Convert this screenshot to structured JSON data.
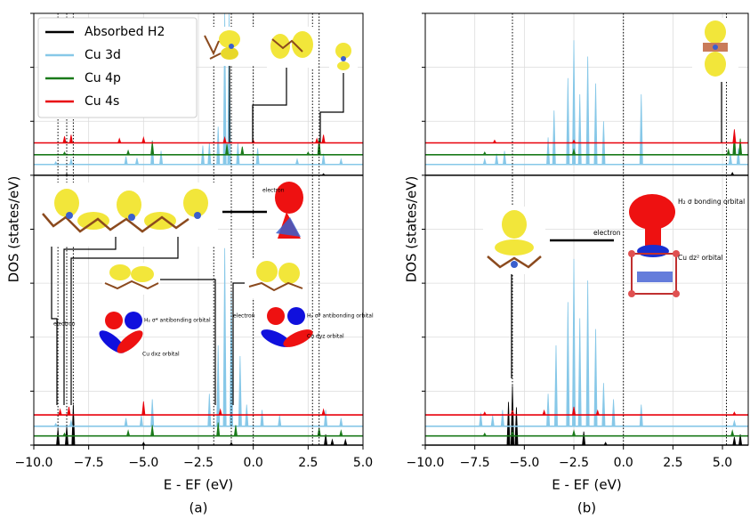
{
  "chart_data": [
    {
      "type": "line",
      "caption": "(a)",
      "xlabel": "E - EF (eV)",
      "ylabel": "DOS (states/eV)",
      "xlim": [
        -10,
        5
      ],
      "xticks": [
        {
          "value": -10,
          "label": "−10.0"
        },
        {
          "value": -7.5,
          "label": "−7.5"
        },
        {
          "value": -5,
          "label": "−5.0"
        },
        {
          "value": -2.5,
          "label": "−2.5"
        },
        {
          "value": 0,
          "label": "0.0"
        },
        2.5,
        {
          "value": 5,
          "label": "5.0"
        }
      ],
      "ylim": [
        0,
        8
      ],
      "yticks": [
        0,
        1,
        2,
        3,
        4,
        5,
        6,
        7,
        8
      ],
      "ytick_labels": false,
      "grid": true,
      "legend": "upper left",
      "vlines": [
        -8.9,
        -8.5,
        -8.2,
        -1.8,
        -1.0,
        0,
        2.7,
        3.0
      ],
      "series": [
        {
          "name": "Absorbed H2",
          "color": "#000000",
          "x": [
            [
              -8.5,
              3.2
            ],
            [
              -8.9,
              -8.5,
              -8.2,
              -5.0,
              -1.0,
              3.3,
              3.6,
              4.2
            ]
          ],
          "values": [
            [
              0.02,
              0.03
            ],
            [
              0.3,
              0.35,
              0.75,
              0.05,
              0.05,
              0.2,
              0.1,
              0.1
            ]
          ]
        },
        {
          "name": "Cu 3d",
          "color": "#87c8e8",
          "x": [
            [
              -9.0,
              -8.3,
              -5.8,
              -5.3,
              -4.6,
              -4.2,
              -2.3,
              -2.0,
              -1.6,
              -1.3,
              -1.1,
              -0.7,
              0.2,
              2.0,
              3.2,
              4.0
            ],
            [
              -9.0,
              -8.3,
              -5.8,
              -5.1,
              -4.6,
              -2.0,
              -1.6,
              -1.3,
              -1.0,
              -0.6,
              -0.3,
              0.4,
              1.2,
              3.3,
              4.0
            ]
          ],
          "values": [
            [
              0.05,
              0.1,
              0.15,
              0.12,
              0.45,
              0.25,
              0.35,
              0.4,
              0.7,
              2.8,
              2.8,
              0.4,
              0.3,
              0.1,
              0.2,
              0.1
            ],
            [
              0.05,
              0.1,
              0.15,
              0.2,
              0.5,
              0.6,
              1.5,
              3.3,
              2.5,
              1.3,
              0.4,
              0.3,
              0.2,
              0.3,
              0.15
            ]
          ]
        },
        {
          "name": "Cu 4p",
          "color": "#1a7a1a",
          "x": [
            [
              -8.6,
              -5.7,
              -4.6,
              -1.2,
              -0.5,
              2.5,
              3.0
            ],
            [
              -8.6,
              -5.7,
              -4.6,
              -1.6,
              -0.8,
              3.0,
              4.0
            ]
          ],
          "values": [
            [
              0.05,
              0.08,
              0.25,
              0.2,
              0.15,
              0.05,
              0.3
            ],
            [
              0.05,
              0.1,
              0.2,
              0.25,
              0.2,
              0.15,
              0.1
            ]
          ]
        },
        {
          "name": "Cu 4s",
          "color": "#e8000b",
          "x": [
            [
              -8.6,
              -8.3,
              -6.1,
              -5.0,
              -1.3,
              0.0,
              2.9,
              3.2
            ],
            [
              -8.8,
              -8.4,
              -5.0,
              -1.5,
              3.2
            ]
          ],
          "values": [
            [
              0.12,
              0.15,
              0.08,
              0.1,
              0.1,
              0.05,
              0.08,
              0.15
            ],
            [
              0.1,
              0.15,
              0.25,
              0.1,
              0.1
            ]
          ]
        }
      ],
      "annotations": [
        "electron",
        "H₂ σ* antibonding orbital",
        "Cu dxz orbital",
        "electron",
        "H₂ σ* antibonding orbital",
        "Cu dyz orbital",
        "electron"
      ]
    },
    {
      "type": "line",
      "caption": "(b)",
      "xlabel": "E - EF (eV)",
      "ylabel": "DOS (states/eV)",
      "xlim": [
        -10,
        6.3
      ],
      "xticks": [
        {
          "value": -10,
          "label": "−10.0"
        },
        {
          "value": -7.5,
          "label": "−7.5"
        },
        {
          "value": -5,
          "label": "−5.0"
        },
        {
          "value": -2.5,
          "label": "−2.5"
        },
        {
          "value": 0,
          "label": "0.0"
        },
        2.5,
        {
          "value": 5,
          "label": "5.0"
        }
      ],
      "ylim": [
        0,
        8
      ],
      "yticks": [
        0,
        1,
        2,
        3,
        4,
        5,
        6,
        7,
        8
      ],
      "ytick_labels": false,
      "grid": true,
      "vlines": [
        -5.6,
        0,
        5.2
      ],
      "series": [
        {
          "name": "Absorbed H2",
          "color": "#000000",
          "x": [
            [
              5.5
            ],
            [
              -5.8,
              -5.6,
              -5.4,
              -2.0,
              -0.9,
              5.6,
              5.9
            ]
          ],
          "values": [
            [
              0.05
            ],
            [
              0.8,
              1.1,
              0.7,
              0.25,
              0.05,
              0.15,
              0.2
            ]
          ]
        },
        {
          "name": "Cu 3d",
          "color": "#87c8e8",
          "x": [
            [
              -7.0,
              -6.4,
              -6.0,
              -3.8,
              -3.5,
              -2.8,
              -2.5,
              -2.2,
              -1.8,
              -1.4,
              -1.0,
              0.9,
              5.4,
              5.8
            ],
            [
              -7.2,
              -6.6,
              -6.1,
              -3.8,
              -3.4,
              -2.8,
              -2.5,
              -2.2,
              -1.8,
              -1.4,
              -1.0,
              -0.5,
              0.9,
              5.6
            ]
          ],
          "values": [
            [
              0.1,
              0.2,
              0.25,
              0.5,
              1.0,
              1.6,
              2.3,
              1.3,
              2.0,
              1.5,
              0.8,
              1.3,
              0.2,
              0.3
            ],
            [
              0.25,
              0.2,
              0.3,
              0.6,
              1.5,
              2.3,
              3.1,
              2.0,
              2.7,
              1.8,
              0.8,
              0.5,
              0.4,
              0.1
            ]
          ]
        },
        {
          "name": "Cu 4p",
          "color": "#1a7a1a",
          "x": [
            [
              -7.0,
              -2.5,
              5.3,
              5.6,
              5.9
            ],
            [
              -7.0,
              -5.6,
              -2.5,
              5.5
            ]
          ],
          "values": [
            [
              0.05,
              0.1,
              0.1,
              0.4,
              0.3
            ],
            [
              0.05,
              0.1,
              0.1,
              0.1
            ]
          ]
        },
        {
          "name": "Cu 4s",
          "color": "#e8000b",
          "x": [
            [
              -6.5,
              -2.5,
              5.6
            ],
            [
              -7.0,
              -5.6,
              -4.0,
              -2.5,
              -1.3,
              5.6
            ]
          ],
          "values": [
            [
              0.05,
              0.05,
              0.25
            ],
            [
              0.05,
              0.1,
              0.08,
              0.15,
              0.08,
              0.05
            ]
          ]
        }
      ],
      "annotations": [
        "electron",
        "H₂ σ bonding orbital",
        "Cu dz² orbital"
      ]
    }
  ]
}
